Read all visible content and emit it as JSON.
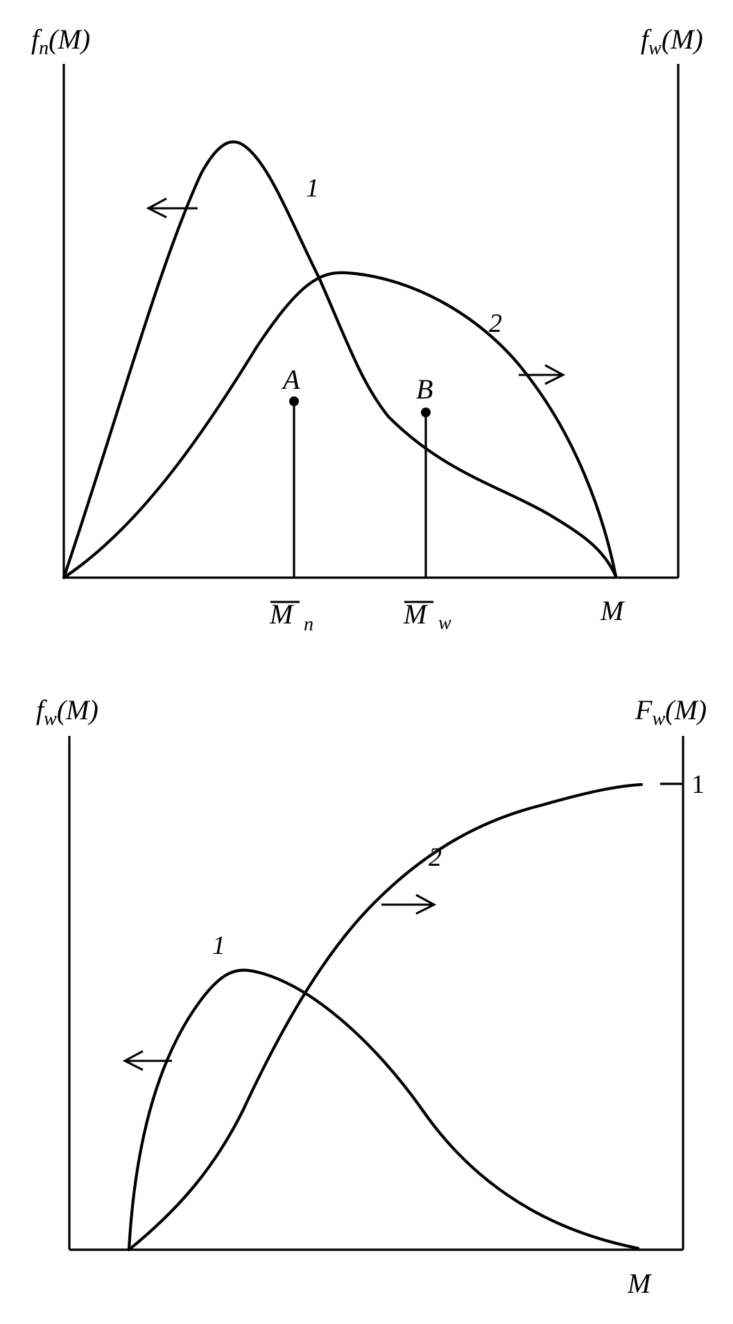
{
  "chart_data": [
    {
      "type": "line",
      "title": "",
      "xlabel": "M",
      "ylabel_left": "fn(M)",
      "ylabel_right": "fw(M)",
      "y_axes": "dual",
      "grid": false,
      "series": [
        {
          "name": "1",
          "axis": "left",
          "arrow": "left"
        },
        {
          "name": "2",
          "axis": "right",
          "arrow": "right"
        }
      ],
      "markers": [
        {
          "label": "A",
          "x_label": "M",
          "x_sub": "n"
        },
        {
          "label": "B",
          "x_label": "M",
          "x_sub": "w"
        }
      ]
    },
    {
      "type": "line",
      "title": "",
      "xlabel": "M",
      "ylabel_left": "fw(M)",
      "ylabel_right": "Fw(M)",
      "y_axes": "dual",
      "y_right_ticks": [
        "1"
      ],
      "grid": false,
      "series": [
        {
          "name": "1",
          "axis": "left",
          "arrow": "left"
        },
        {
          "name": "2",
          "axis": "right",
          "arrow": "right"
        }
      ]
    }
  ],
  "text": {
    "top": {
      "ylabel_left_main": "f",
      "ylabel_left_sub": "n",
      "ylabel_left_arg": "(M)",
      "ylabel_right_main": "f",
      "ylabel_right_sub": "w",
      "ylabel_right_arg": "(M)",
      "xlabel": "M",
      "curve1_label": "1",
      "curve2_label": "2",
      "point_a": "A",
      "point_b": "B",
      "mn_main": "M",
      "mn_sub": "n",
      "mw_main": "M",
      "mw_sub": "w"
    },
    "bottom": {
      "ylabel_left_main": "f",
      "ylabel_left_sub": "w",
      "ylabel_left_arg": "(M)",
      "ylabel_right_main": "F",
      "ylabel_right_sub": "w",
      "ylabel_right_arg": "(M)",
      "xlabel": "M",
      "curve1_label": "1",
      "curve2_label": "2",
      "right_tick": "1"
    }
  }
}
